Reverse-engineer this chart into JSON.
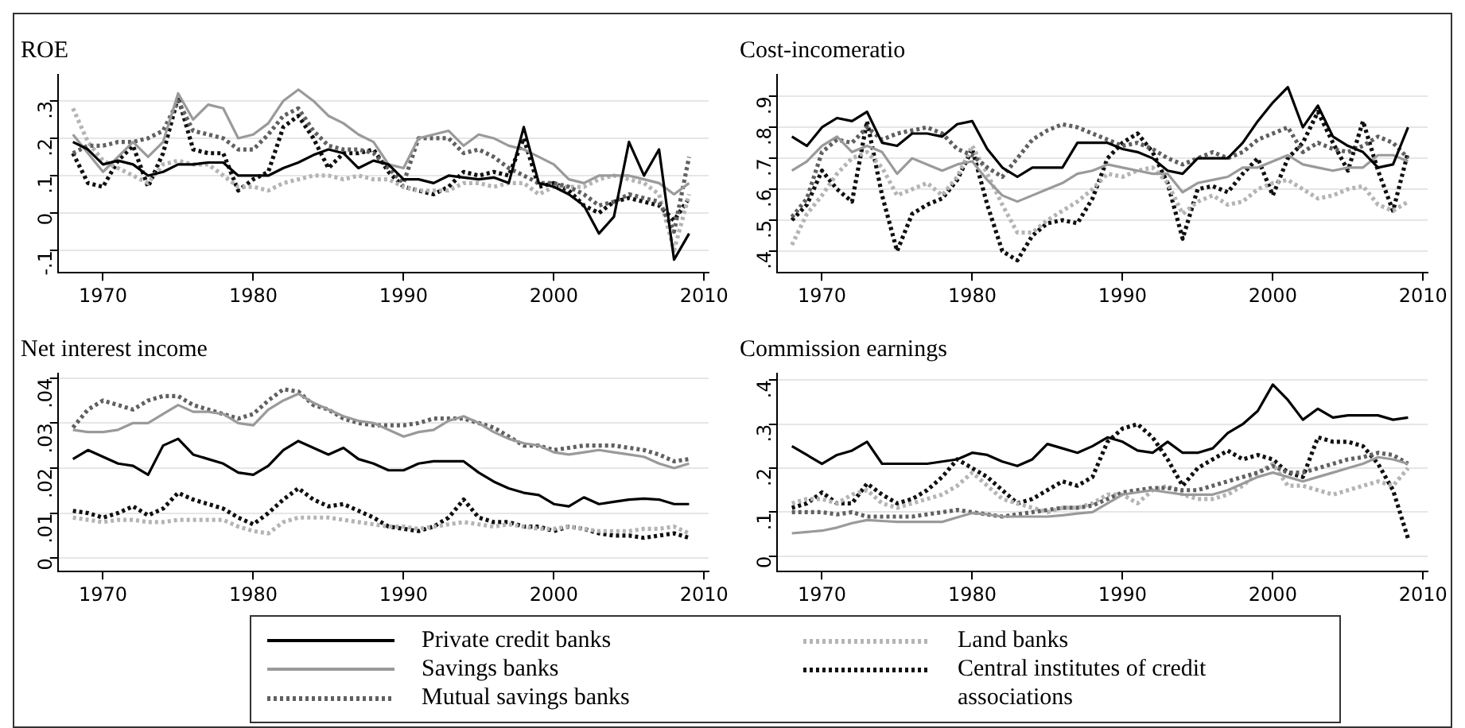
{
  "chart_data": [
    {
      "type": "line",
      "title": "ROE",
      "x": [
        1968,
        1969,
        1970,
        1971,
        1972,
        1973,
        1974,
        1975,
        1976,
        1977,
        1978,
        1979,
        1980,
        1981,
        1982,
        1983,
        1984,
        1985,
        1986,
        1987,
        1988,
        1989,
        1990,
        1991,
        1992,
        1993,
        1994,
        1995,
        1996,
        1997,
        1998,
        1999,
        2000,
        2001,
        2002,
        2003,
        2004,
        2005,
        2006,
        2007,
        2008,
        2009
      ],
      "xlim": [
        1967,
        2010.3
      ],
      "xticks": [
        1970,
        1980,
        1990,
        2000,
        2010
      ],
      "ylim": [
        -0.16,
        0.37
      ],
      "yticks": [
        {
          "value": -0.1,
          "label": "-.1"
        },
        {
          "value": 0,
          "label": "0"
        },
        {
          "value": 0.1,
          "label": ".1"
        },
        {
          "value": 0.2,
          "label": ".2"
        },
        {
          "value": 0.3,
          "label": ".3"
        }
      ],
      "grid": "y",
      "legend": "bottom",
      "series": [
        {
          "name": "Private credit banks",
          "color": "#000000",
          "line_style": "solid",
          "values": [
            0.19,
            0.17,
            0.13,
            0.14,
            0.13,
            0.1,
            0.11,
            0.13,
            0.13,
            0.135,
            0.135,
            0.1,
            0.1,
            0.1,
            0.12,
            0.135,
            0.155,
            0.17,
            0.16,
            0.12,
            0.14,
            0.13,
            0.09,
            0.09,
            0.08,
            0.1,
            0.095,
            0.09,
            0.095,
            0.08,
            0.23,
            0.08,
            0.07,
            0.05,
            0.02,
            -0.055,
            -0.01,
            0.19,
            0.1,
            0.17,
            -0.125,
            -0.055
          ]
        },
        {
          "name": "Savings banks",
          "color": "#9a9a9a",
          "line_style": "solid",
          "values": [
            0.21,
            0.16,
            0.11,
            0.15,
            0.19,
            0.15,
            0.19,
            0.32,
            0.25,
            0.29,
            0.28,
            0.2,
            0.21,
            0.24,
            0.3,
            0.33,
            0.3,
            0.26,
            0.24,
            0.21,
            0.19,
            0.13,
            0.12,
            0.2,
            0.21,
            0.22,
            0.18,
            0.21,
            0.2,
            0.18,
            0.17,
            0.15,
            0.13,
            0.09,
            0.08,
            0.1,
            0.1,
            0.1,
            0.09,
            0.08,
            0.05,
            0.08
          ]
        },
        {
          "name": "Mutual savings banks",
          "color": "#606060",
          "line_style": "dotted",
          "values": [
            0.16,
            0.18,
            0.18,
            0.19,
            0.19,
            0.2,
            0.22,
            0.3,
            0.22,
            0.21,
            0.2,
            0.17,
            0.17,
            0.21,
            0.26,
            0.28,
            0.22,
            0.18,
            0.17,
            0.17,
            0.16,
            0.12,
            0.08,
            0.2,
            0.2,
            0.2,
            0.16,
            0.17,
            0.15,
            0.12,
            0.1,
            0.08,
            0.08,
            0.07,
            0.05,
            0.02,
            0.03,
            0.05,
            0.04,
            0.03,
            -0.05,
            0.15
          ]
        },
        {
          "name": "Land banks",
          "color": "#b4b4b4",
          "line_style": "dotted",
          "values": [
            0.28,
            0.19,
            0.14,
            0.12,
            0.1,
            0.08,
            0.13,
            0.14,
            0.13,
            0.13,
            0.1,
            0.07,
            0.07,
            0.06,
            0.08,
            0.09,
            0.1,
            0.1,
            0.09,
            0.1,
            0.09,
            0.09,
            0.07,
            0.06,
            0.06,
            0.06,
            0.08,
            0.08,
            0.07,
            0.08,
            0.08,
            0.05,
            0.07,
            0.07,
            0.07,
            0.09,
            0.1,
            0.09,
            0.08,
            0.05,
            -0.1,
            0.05
          ]
        },
        {
          "name": "Central institutes of credit associations",
          "color": "#101010",
          "line_style": "dotted",
          "values": [
            0.16,
            0.08,
            0.07,
            0.14,
            0.18,
            0.07,
            0.16,
            0.31,
            0.17,
            0.16,
            0.16,
            0.06,
            0.09,
            0.11,
            0.23,
            0.26,
            0.2,
            0.12,
            0.16,
            0.16,
            0.17,
            0.11,
            0.07,
            0.06,
            0.05,
            0.07,
            0.11,
            0.1,
            0.11,
            0.1,
            0.2,
            0.07,
            0.08,
            0.06,
            0.02,
            0.0,
            0.03,
            0.04,
            0.03,
            0.02,
            -0.02,
            0.04
          ]
        }
      ]
    },
    {
      "type": "line",
      "title": "Cost-incomeratio",
      "x": [
        1968,
        1969,
        1970,
        1971,
        1972,
        1973,
        1974,
        1975,
        1976,
        1977,
        1978,
        1979,
        1980,
        1981,
        1982,
        1983,
        1984,
        1985,
        1986,
        1987,
        1988,
        1989,
        1990,
        1991,
        1992,
        1993,
        1994,
        1995,
        1996,
        1997,
        1998,
        1999,
        2000,
        2001,
        2002,
        2003,
        2004,
        2005,
        2006,
        2007,
        2008,
        2009
      ],
      "xlim": [
        1967,
        2010.3
      ],
      "xticks": [
        1970,
        1980,
        1990,
        2000,
        2010
      ],
      "ylim": [
        0.33,
        0.97
      ],
      "yticks": [
        {
          "value": 0.4,
          "label": ".4"
        },
        {
          "value": 0.5,
          "label": ".5"
        },
        {
          "value": 0.6,
          "label": ".6"
        },
        {
          "value": 0.7,
          "label": ".7"
        },
        {
          "value": 0.8,
          "label": ".8"
        },
        {
          "value": 0.9,
          "label": ".9"
        }
      ],
      "grid": "y",
      "series": [
        {
          "color": "#000000",
          "line_style": "solid",
          "values": [
            0.77,
            0.74,
            0.8,
            0.83,
            0.82,
            0.85,
            0.75,
            0.74,
            0.78,
            0.78,
            0.77,
            0.81,
            0.82,
            0.73,
            0.67,
            0.64,
            0.67,
            0.67,
            0.67,
            0.75,
            0.75,
            0.75,
            0.73,
            0.72,
            0.7,
            0.66,
            0.65,
            0.7,
            0.7,
            0.7,
            0.75,
            0.82,
            0.88,
            0.93,
            0.8,
            0.87,
            0.77,
            0.74,
            0.72,
            0.67,
            0.68,
            0.8
          ]
        },
        {
          "color": "#9a9a9a",
          "line_style": "solid",
          "values": [
            0.66,
            0.69,
            0.74,
            0.77,
            0.72,
            0.74,
            0.72,
            0.65,
            0.7,
            0.68,
            0.66,
            0.68,
            0.69,
            0.63,
            0.58,
            0.56,
            0.58,
            0.6,
            0.62,
            0.65,
            0.66,
            0.68,
            0.67,
            0.66,
            0.65,
            0.65,
            0.59,
            0.62,
            0.63,
            0.64,
            0.67,
            0.67,
            0.69,
            0.71,
            0.68,
            0.67,
            0.66,
            0.67,
            0.67,
            0.71,
            0.71,
            0.69
          ]
        },
        {
          "color": "#606060",
          "line_style": "dotted",
          "values": [
            0.51,
            0.57,
            0.72,
            0.76,
            0.75,
            0.8,
            0.76,
            0.78,
            0.79,
            0.8,
            0.78,
            0.73,
            0.71,
            0.67,
            0.64,
            0.7,
            0.76,
            0.79,
            0.81,
            0.8,
            0.78,
            0.76,
            0.74,
            0.75,
            0.73,
            0.7,
            0.68,
            0.7,
            0.72,
            0.7,
            0.72,
            0.76,
            0.78,
            0.8,
            0.72,
            0.75,
            0.73,
            0.72,
            0.74,
            0.77,
            0.75,
            0.7
          ]
        },
        {
          "color": "#b4b4b4",
          "line_style": "dotted",
          "values": [
            0.42,
            0.52,
            0.58,
            0.65,
            0.7,
            0.72,
            0.67,
            0.58,
            0.6,
            0.62,
            0.58,
            0.64,
            0.74,
            0.65,
            0.55,
            0.46,
            0.46,
            0.5,
            0.53,
            0.56,
            0.6,
            0.65,
            0.64,
            0.66,
            0.67,
            0.62,
            0.52,
            0.56,
            0.58,
            0.55,
            0.56,
            0.6,
            0.62,
            0.63,
            0.6,
            0.57,
            0.58,
            0.6,
            0.61,
            0.55,
            0.53,
            0.56
          ]
        },
        {
          "color": "#101010",
          "line_style": "dotted",
          "values": [
            0.5,
            0.55,
            0.66,
            0.6,
            0.56,
            0.82,
            0.58,
            0.4,
            0.52,
            0.55,
            0.57,
            0.63,
            0.73,
            0.55,
            0.4,
            0.37,
            0.45,
            0.49,
            0.5,
            0.49,
            0.57,
            0.7,
            0.75,
            0.78,
            0.72,
            0.62,
            0.44,
            0.6,
            0.61,
            0.59,
            0.65,
            0.7,
            0.58,
            0.7,
            0.75,
            0.85,
            0.75,
            0.66,
            0.82,
            0.66,
            0.53,
            0.72
          ]
        }
      ]
    },
    {
      "type": "line",
      "title": "Net interest income",
      "x": [
        1968,
        1969,
        1970,
        1971,
        1972,
        1973,
        1974,
        1975,
        1976,
        1977,
        1978,
        1979,
        1980,
        1981,
        1982,
        1983,
        1984,
        1985,
        1986,
        1987,
        1988,
        1989,
        1990,
        1991,
        1992,
        1993,
        1994,
        1995,
        1996,
        1997,
        1998,
        1999,
        2000,
        2001,
        2002,
        2003,
        2004,
        2005,
        2006,
        2007,
        2008,
        2009
      ],
      "xlim": [
        1967,
        2010.3
      ],
      "xticks": [
        1970,
        1980,
        1990,
        2000,
        2010
      ],
      "ylim": [
        -0.003,
        0.041
      ],
      "yticks": [
        {
          "value": 0,
          "label": "0"
        },
        {
          "value": 0.01,
          "label": ".01"
        },
        {
          "value": 0.02,
          "label": ".02"
        },
        {
          "value": 0.03,
          "label": ".03"
        },
        {
          "value": 0.04,
          "label": ".04"
        }
      ],
      "grid": "y",
      "series": [
        {
          "color": "#000000",
          "line_style": "solid",
          "values": [
            0.022,
            0.024,
            0.0225,
            0.021,
            0.0205,
            0.0185,
            0.025,
            0.0265,
            0.023,
            0.022,
            0.021,
            0.019,
            0.0185,
            0.0205,
            0.024,
            0.026,
            0.0245,
            0.023,
            0.0245,
            0.022,
            0.021,
            0.0195,
            0.0195,
            0.021,
            0.0215,
            0.0215,
            0.0215,
            0.019,
            0.017,
            0.0155,
            0.0145,
            0.014,
            0.012,
            0.0115,
            0.0135,
            0.012,
            0.0125,
            0.013,
            0.0132,
            0.013,
            0.012,
            0.012
          ]
        },
        {
          "color": "#9a9a9a",
          "line_style": "solid",
          "values": [
            0.0285,
            0.028,
            0.028,
            0.0285,
            0.03,
            0.03,
            0.032,
            0.034,
            0.0325,
            0.0325,
            0.032,
            0.03,
            0.0295,
            0.033,
            0.035,
            0.0365,
            0.0345,
            0.033,
            0.0315,
            0.0305,
            0.03,
            0.0285,
            0.027,
            0.028,
            0.0285,
            0.0305,
            0.0315,
            0.03,
            0.028,
            0.0265,
            0.0255,
            0.025,
            0.0235,
            0.023,
            0.0235,
            0.024,
            0.0235,
            0.023,
            0.0225,
            0.021,
            0.02,
            0.021
          ]
        },
        {
          "color": "#606060",
          "line_style": "dotted",
          "values": [
            0.029,
            0.033,
            0.035,
            0.034,
            0.033,
            0.035,
            0.036,
            0.036,
            0.034,
            0.033,
            0.032,
            0.031,
            0.032,
            0.035,
            0.0375,
            0.037,
            0.034,
            0.033,
            0.031,
            0.03,
            0.0295,
            0.0295,
            0.0295,
            0.03,
            0.031,
            0.031,
            0.031,
            0.03,
            0.029,
            0.027,
            0.025,
            0.025,
            0.024,
            0.0245,
            0.025,
            0.025,
            0.025,
            0.0245,
            0.024,
            0.023,
            0.0215,
            0.022
          ]
        },
        {
          "color": "#b4b4b4",
          "line_style": "dotted",
          "values": [
            0.009,
            0.0085,
            0.008,
            0.0085,
            0.0085,
            0.008,
            0.008,
            0.0085,
            0.0085,
            0.0085,
            0.0085,
            0.007,
            0.006,
            0.0055,
            0.008,
            0.009,
            0.009,
            0.009,
            0.0085,
            0.008,
            0.0075,
            0.007,
            0.007,
            0.0065,
            0.007,
            0.0075,
            0.008,
            0.0075,
            0.007,
            0.0075,
            0.007,
            0.0065,
            0.0065,
            0.007,
            0.0065,
            0.006,
            0.006,
            0.006,
            0.0065,
            0.0065,
            0.007,
            0.0055
          ]
        },
        {
          "color": "#101010",
          "line_style": "dotted",
          "values": [
            0.0105,
            0.01,
            0.009,
            0.01,
            0.0115,
            0.0095,
            0.011,
            0.0145,
            0.013,
            0.012,
            0.011,
            0.009,
            0.0075,
            0.01,
            0.013,
            0.0155,
            0.013,
            0.0115,
            0.012,
            0.0105,
            0.009,
            0.007,
            0.0065,
            0.006,
            0.007,
            0.009,
            0.013,
            0.009,
            0.008,
            0.008,
            0.007,
            0.007,
            0.006,
            0.007,
            0.0065,
            0.0055,
            0.005,
            0.005,
            0.0045,
            0.005,
            0.0055,
            0.0045
          ]
        }
      ]
    },
    {
      "type": "line",
      "title": "Commission earnings",
      "x": [
        1968,
        1969,
        1970,
        1971,
        1972,
        1973,
        1974,
        1975,
        1976,
        1977,
        1978,
        1979,
        1980,
        1981,
        1982,
        1983,
        1984,
        1985,
        1986,
        1987,
        1988,
        1989,
        1990,
        1991,
        1992,
        1993,
        1994,
        1995,
        1996,
        1997,
        1998,
        1999,
        2000,
        2001,
        2002,
        2003,
        2004,
        2005,
        2006,
        2007,
        2008,
        2009
      ],
      "xlim": [
        1967,
        2010.3
      ],
      "xticks": [
        1970,
        1980,
        1990,
        2000,
        2010
      ],
      "ylim": [
        -0.035,
        0.415
      ],
      "yticks": [
        {
          "value": 0,
          "label": "0"
        },
        {
          "value": 0.1,
          "label": ".1"
        },
        {
          "value": 0.2,
          "label": ".2"
        },
        {
          "value": 0.3,
          "label": ".3"
        },
        {
          "value": 0.4,
          "label": ".4"
        }
      ],
      "grid": "y",
      "series": [
        {
          "color": "#000000",
          "line_style": "solid",
          "values": [
            0.25,
            0.23,
            0.21,
            0.23,
            0.24,
            0.26,
            0.21,
            0.21,
            0.21,
            0.21,
            0.215,
            0.22,
            0.235,
            0.23,
            0.215,
            0.205,
            0.22,
            0.255,
            0.245,
            0.235,
            0.25,
            0.27,
            0.26,
            0.24,
            0.235,
            0.26,
            0.235,
            0.235,
            0.245,
            0.28,
            0.3,
            0.33,
            0.39,
            0.355,
            0.31,
            0.335,
            0.315,
            0.32,
            0.32,
            0.32,
            0.31,
            0.315
          ]
        },
        {
          "color": "#9a9a9a",
          "line_style": "solid",
          "values": [
            0.052,
            0.055,
            0.058,
            0.065,
            0.075,
            0.082,
            0.08,
            0.078,
            0.078,
            0.078,
            0.078,
            0.088,
            0.098,
            0.095,
            0.09,
            0.09,
            0.09,
            0.09,
            0.093,
            0.097,
            0.1,
            0.12,
            0.14,
            0.145,
            0.15,
            0.145,
            0.14,
            0.14,
            0.14,
            0.15,
            0.165,
            0.18,
            0.19,
            0.18,
            0.17,
            0.18,
            0.19,
            0.2,
            0.21,
            0.225,
            0.22,
            0.21
          ]
        },
        {
          "color": "#606060",
          "line_style": "dotted",
          "values": [
            0.1,
            0.1,
            0.1,
            0.095,
            0.1,
            0.09,
            0.09,
            0.09,
            0.09,
            0.095,
            0.1,
            0.105,
            0.1,
            0.095,
            0.09,
            0.095,
            0.1,
            0.105,
            0.11,
            0.11,
            0.115,
            0.13,
            0.145,
            0.15,
            0.155,
            0.155,
            0.15,
            0.15,
            0.16,
            0.17,
            0.18,
            0.19,
            0.205,
            0.19,
            0.19,
            0.2,
            0.21,
            0.22,
            0.225,
            0.235,
            0.23,
            0.21
          ]
        },
        {
          "color": "#b4b4b4",
          "line_style": "dotted",
          "values": [
            0.12,
            0.13,
            0.13,
            0.12,
            0.14,
            0.15,
            0.12,
            0.11,
            0.12,
            0.13,
            0.14,
            0.16,
            0.19,
            0.16,
            0.13,
            0.12,
            0.11,
            0.1,
            0.11,
            0.11,
            0.12,
            0.14,
            0.14,
            0.12,
            0.15,
            0.16,
            0.14,
            0.13,
            0.13,
            0.14,
            0.16,
            0.19,
            0.21,
            0.16,
            0.16,
            0.15,
            0.14,
            0.15,
            0.16,
            0.17,
            0.16,
            0.2
          ]
        },
        {
          "color": "#101010",
          "line_style": "dotted",
          "values": [
            0.11,
            0.12,
            0.145,
            0.12,
            0.12,
            0.165,
            0.14,
            0.12,
            0.13,
            0.15,
            0.18,
            0.22,
            0.2,
            0.18,
            0.15,
            0.12,
            0.13,
            0.15,
            0.17,
            0.16,
            0.18,
            0.26,
            0.29,
            0.3,
            0.27,
            0.22,
            0.16,
            0.2,
            0.22,
            0.24,
            0.22,
            0.23,
            0.22,
            0.19,
            0.18,
            0.27,
            0.26,
            0.26,
            0.25,
            0.21,
            0.15,
            0.04
          ]
        }
      ]
    }
  ]
}
